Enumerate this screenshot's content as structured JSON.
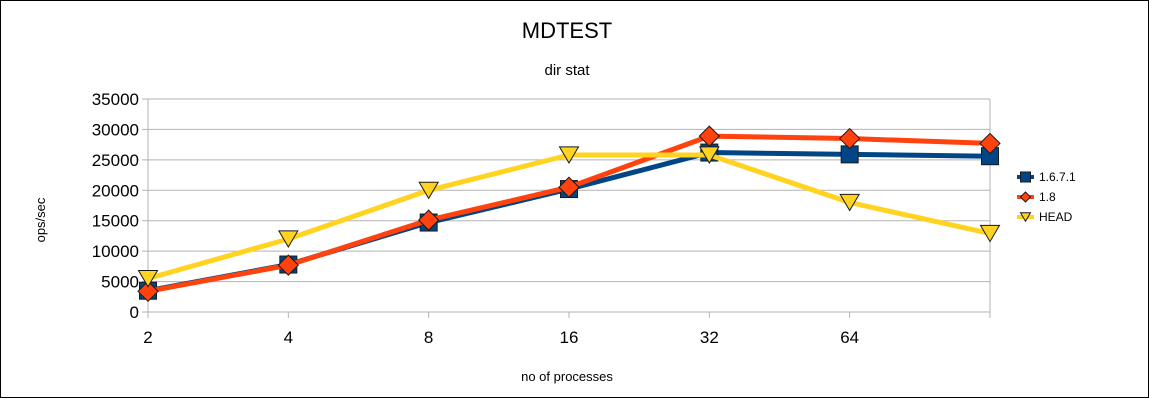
{
  "chart_data": {
    "type": "line",
    "title": "MDTEST",
    "subtitle": "dir stat",
    "xlabel": "no of processes",
    "ylabel": "ops/sec",
    "categories": [
      "2",
      "4",
      "8",
      "16",
      "32",
      "64",
      ""
    ],
    "ylim": [
      0,
      35000
    ],
    "yticks": [
      "35000",
      "30000",
      "25000",
      "20000",
      "15000",
      "10000",
      "5000",
      "0"
    ],
    "grid": true,
    "legend_position": "right",
    "series": [
      {
        "name": "1.6.7.1",
        "color": "#004586",
        "marker": "square",
        "values": [
          3500,
          7800,
          14700,
          20200,
          26200,
          25900,
          25600
        ]
      },
      {
        "name": "1.8",
        "color": "#ff420e",
        "marker": "diamond",
        "values": [
          3400,
          7700,
          15100,
          20500,
          28900,
          28500,
          27700
        ]
      },
      {
        "name": "HEAD",
        "color": "#ffd320",
        "marker": "triangle-down",
        "values": [
          5500,
          12000,
          20000,
          25800,
          25800,
          18000,
          12900
        ]
      }
    ]
  }
}
